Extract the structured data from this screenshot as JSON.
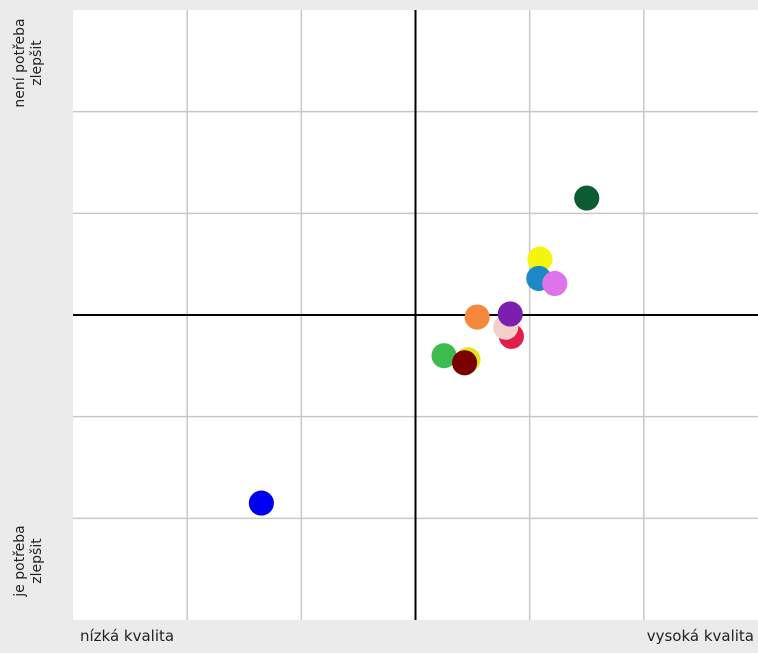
{
  "chart_data": {
    "type": "scatter",
    "xlabel_low": "nízká kvalita",
    "xlabel_high": "vysoká kvalita",
    "ylabel_high": [
      "není potřeba",
      "zlepšit"
    ],
    "ylabel_low": [
      "je potřeba",
      "zlepšit"
    ],
    "xlim": [
      -3,
      3
    ],
    "ylim": [
      -3,
      3
    ],
    "grid": true,
    "point_radius": 0.11,
    "points": [
      {
        "x": 1.5,
        "y": 1.15,
        "color": "#0b5b33"
      },
      {
        "x": 1.09,
        "y": 0.55,
        "color": "#f5f50c"
      },
      {
        "x": 1.08,
        "y": 0.36,
        "color": "#1c88c8"
      },
      {
        "x": 1.22,
        "y": 0.31,
        "color": "#df73ea"
      },
      {
        "x": 0.54,
        "y": -0.02,
        "color": "#f5883b"
      },
      {
        "x": 0.84,
        "y": -0.21,
        "color": "#e21d4b"
      },
      {
        "x": 0.79,
        "y": -0.12,
        "color": "#f3d0cb"
      },
      {
        "x": 0.83,
        "y": 0.01,
        "color": "#7a1fb0"
      },
      {
        "x": 0.46,
        "y": -0.44,
        "color": "#dfe81a"
      },
      {
        "x": 0.25,
        "y": -0.4,
        "color": "#3dbb4f"
      },
      {
        "x": 0.43,
        "y": -0.47,
        "color": "#7a0000"
      },
      {
        "x": -1.35,
        "y": -1.85,
        "color": "#0000ee"
      }
    ]
  }
}
